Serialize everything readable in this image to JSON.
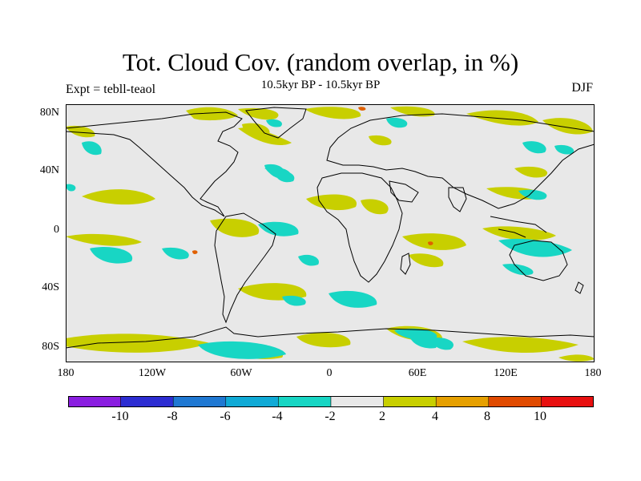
{
  "title": "Tot. Cloud Cov. (random overlap, in %)",
  "subtitle": "10.5kyr BP - 10.5kyr BP",
  "experiment_label": "Expt = tebll-teaol",
  "season_label": "DJF",
  "lat_labels": [
    "80N",
    "40N",
    "0",
    "40S",
    "80S"
  ],
  "lon_labels": [
    "180",
    "120W",
    "60W",
    "0",
    "60E",
    "120E",
    "180"
  ],
  "colorbar": {
    "colors": [
      "#8a1ee0",
      "#2d2dd2",
      "#1f78d2",
      "#10aad6",
      "#18d6c4",
      "#e8e8e8",
      "#c8cf00",
      "#e6a000",
      "#e04a00",
      "#e81010"
    ],
    "labels": [
      "-10",
      "-8",
      "-6",
      "-4",
      "-2",
      "2",
      "4",
      "8",
      "10"
    ]
  },
  "colors": {
    "background": "#e8e8e8",
    "positive": "#c8cf00",
    "negative": "#18d6c4",
    "strong_positive": "#e06000"
  }
}
